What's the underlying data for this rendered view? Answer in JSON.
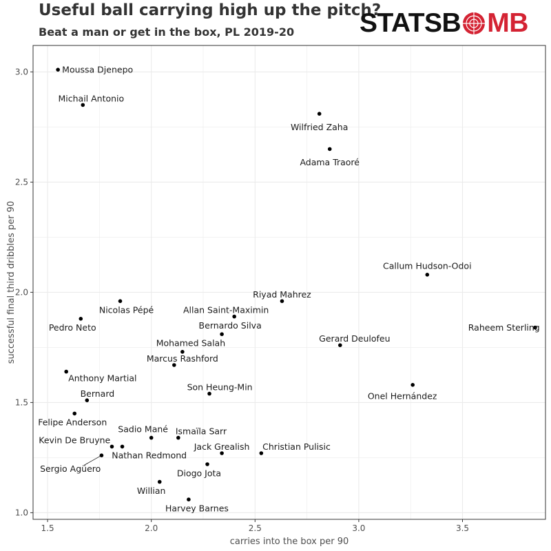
{
  "header": {
    "title": "Useful ball carrying high up the pitch?",
    "subtitle": "Beat a man or get in the box, PL 2019-20",
    "logo_part1": "STATSB",
    "logo_part2": "MB"
  },
  "colors": {
    "point": "#000000",
    "grid": "#ebebeb",
    "border": "#333333",
    "logo_red": "#d42333",
    "logo_black": "#111111"
  },
  "chart_data": {
    "type": "scatter",
    "title": "Useful ball carrying high up the pitch?",
    "subtitle": "Beat a man or get in the box, PL 2019-20",
    "xlabel": "carries into the box per 90",
    "ylabel": "successful final third dribbles per 90",
    "xlim": [
      1.43,
      3.9
    ],
    "ylim": [
      0.97,
      3.12
    ],
    "xticks": [
      1.5,
      2.0,
      2.5,
      3.0,
      3.5
    ],
    "xtick_labels": [
      "1.5",
      "2.0",
      "2.5",
      "3.0",
      "3.5"
    ],
    "yticks": [
      1.0,
      1.5,
      2.0,
      2.5,
      3.0
    ],
    "ytick_labels": [
      "1.0",
      "1.5",
      "2.0",
      "2.5",
      "3.0"
    ],
    "grid": true,
    "points": [
      {
        "name": "Moussa Djenepo",
        "x": 1.55,
        "y": 3.01,
        "lx": 1.57,
        "ly": 3.01,
        "anchor": "start"
      },
      {
        "name": "Michail Antonio",
        "x": 1.67,
        "y": 2.85,
        "lx": 1.71,
        "ly": 2.88,
        "anchor": "middle"
      },
      {
        "name": "Wilfried Zaha",
        "x": 2.81,
        "y": 2.81,
        "lx": 2.81,
        "ly": 2.75,
        "anchor": "middle"
      },
      {
        "name": "Adama Traoré",
        "x": 2.86,
        "y": 2.65,
        "lx": 2.86,
        "ly": 2.59,
        "anchor": "middle"
      },
      {
        "name": "Callum Hudson-Odoi",
        "x": 3.33,
        "y": 2.08,
        "lx": 3.33,
        "ly": 2.12,
        "anchor": "middle"
      },
      {
        "name": "Riyad Mahrez",
        "x": 2.63,
        "y": 1.96,
        "lx": 2.63,
        "ly": 1.99,
        "anchor": "middle"
      },
      {
        "name": "Nicolas Pépé",
        "x": 1.85,
        "y": 1.96,
        "lx": 1.88,
        "ly": 1.92,
        "anchor": "middle"
      },
      {
        "name": "Allan Saint-Maximin",
        "x": 2.4,
        "y": 1.89,
        "lx": 2.36,
        "ly": 1.92,
        "anchor": "middle"
      },
      {
        "name": "Pedro Neto",
        "x": 1.66,
        "y": 1.88,
        "lx": 1.62,
        "ly": 1.84,
        "anchor": "middle"
      },
      {
        "name": "Raheem Sterling",
        "x": 3.85,
        "y": 1.84,
        "lx": 3.7,
        "ly": 1.84,
        "anchor": "middle"
      },
      {
        "name": "Bernardo Silva",
        "x": 2.34,
        "y": 1.81,
        "lx": 2.38,
        "ly": 1.85,
        "anchor": "middle"
      },
      {
        "name": "Gerard Deulofeu",
        "x": 2.91,
        "y": 1.76,
        "lx": 2.98,
        "ly": 1.79,
        "anchor": "middle"
      },
      {
        "name": "Mohamed Salah",
        "x": 2.15,
        "y": 1.73,
        "lx": 2.19,
        "ly": 1.77,
        "anchor": "middle"
      },
      {
        "name": "Marcus Rashford",
        "x": 2.11,
        "y": 1.67,
        "lx": 2.15,
        "ly": 1.7,
        "anchor": "middle"
      },
      {
        "name": "Anthony Martial",
        "x": 1.59,
        "y": 1.64,
        "lx": 1.6,
        "ly": 1.61,
        "anchor": "start"
      },
      {
        "name": "Son Heung-Min",
        "x": 2.28,
        "y": 1.54,
        "lx": 2.33,
        "ly": 1.57,
        "anchor": "middle"
      },
      {
        "name": "Onel Hernández",
        "x": 3.26,
        "y": 1.58,
        "lx": 3.21,
        "ly": 1.53,
        "anchor": "middle"
      },
      {
        "name": "Bernard",
        "x": 1.69,
        "y": 1.51,
        "lx": 1.74,
        "ly": 1.54,
        "anchor": "middle"
      },
      {
        "name": "Felipe Anderson",
        "x": 1.63,
        "y": 1.45,
        "lx": 1.62,
        "ly": 1.41,
        "anchor": "middle"
      },
      {
        "name": "Sadio Mané",
        "x": 2.0,
        "y": 1.34,
        "lx": 1.96,
        "ly": 1.38,
        "anchor": "middle"
      },
      {
        "name": "Ismaïla Sarr",
        "x": 2.13,
        "y": 1.34,
        "lx": 2.24,
        "ly": 1.37,
        "anchor": "middle"
      },
      {
        "name": "Kevin De Bruyne",
        "x": 1.81,
        "y": 1.3,
        "lx": 1.63,
        "ly": 1.33,
        "anchor": "middle"
      },
      {
        "name": "Nathan Redmond",
        "x": 1.86,
        "y": 1.3,
        "lx": 1.99,
        "ly": 1.26,
        "anchor": "middle"
      },
      {
        "name": "Jack Grealish",
        "x": 2.34,
        "y": 1.27,
        "lx": 2.34,
        "ly": 1.3,
        "anchor": "middle"
      },
      {
        "name": "Christian Pulisic",
        "x": 2.53,
        "y": 1.27,
        "lx": 2.7,
        "ly": 1.3,
        "anchor": "middle"
      },
      {
        "name": "Sergio Agüero",
        "x": 1.76,
        "y": 1.26,
        "lx": 1.61,
        "ly": 1.2,
        "anchor": "middle"
      },
      {
        "name": "Diogo Jota",
        "x": 2.27,
        "y": 1.22,
        "lx": 2.23,
        "ly": 1.18,
        "anchor": "middle"
      },
      {
        "name": "Willian",
        "x": 2.04,
        "y": 1.14,
        "lx": 2.0,
        "ly": 1.1,
        "anchor": "middle"
      },
      {
        "name": "Harvey Barnes",
        "x": 2.18,
        "y": 1.06,
        "lx": 2.22,
        "ly": 1.02,
        "anchor": "middle"
      }
    ]
  }
}
